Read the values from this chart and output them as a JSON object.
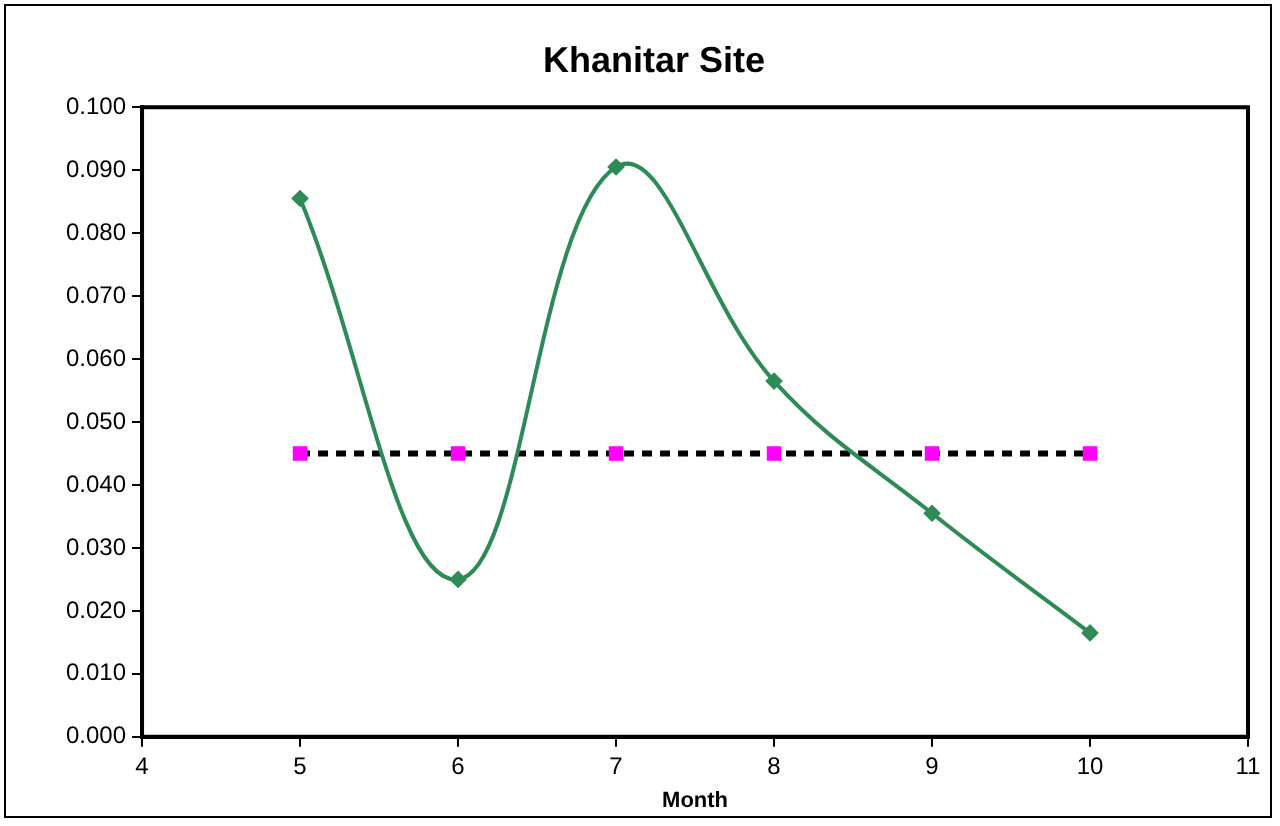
{
  "chart_data": {
    "type": "line",
    "title": "Khanitar Site",
    "xlabel": "Month",
    "xlim": [
      4,
      11
    ],
    "xticks": [
      4,
      5,
      6,
      7,
      8,
      9,
      10,
      11
    ],
    "ylim": [
      0,
      0.1
    ],
    "yticks": [
      {
        "value": 0,
        "label": "0.000"
      },
      {
        "value": 0.01,
        "label": "0.010"
      },
      {
        "value": 0.02,
        "label": "0.020"
      },
      {
        "value": 0.03,
        "label": "0.030"
      },
      {
        "value": 0.04,
        "label": "0.040"
      },
      {
        "value": 0.05,
        "label": "0.050"
      },
      {
        "value": 0.06,
        "label": "0.060"
      },
      {
        "value": 0.07,
        "label": "0.070"
      },
      {
        "value": 0.08,
        "label": "0.080"
      },
      {
        "value": 0.09,
        "label": "0.090"
      },
      {
        "value": 0.1,
        "label": "0.100"
      }
    ],
    "x": [
      5,
      6,
      7,
      8,
      9,
      10
    ],
    "grid": false,
    "legend": false,
    "series": [
      {
        "color": "#2e8b57",
        "values": [
          0.0855,
          0.025,
          0.0905,
          0.0565,
          0.0355,
          0.0165
        ],
        "marker": "diamond",
        "line_style": "solid"
      },
      {
        "color": "#000000",
        "colors": [
          "#ff00ff",
          "#ff00ff",
          "#ff00ff",
          "#ff00ff",
          "#ff00ff",
          "#ff00ff"
        ],
        "values": [
          0.045,
          0.045,
          0.045,
          0.045,
          0.045,
          0.045
        ],
        "marker": "square",
        "line_style": "dashed"
      }
    ]
  }
}
